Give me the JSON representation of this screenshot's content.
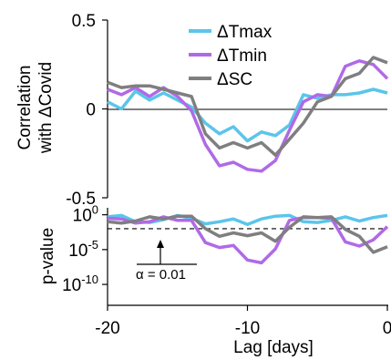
{
  "chart_data": [
    {
      "type": "line",
      "ylabel_line1": "Correlation",
      "ylabel_line2": "with ΔCovid",
      "xlim": [
        -20,
        0
      ],
      "ylim": [
        -0.5,
        0.5
      ],
      "y_ticks": [
        0.5,
        0,
        -0.5
      ],
      "y_tick_labels": [
        "0.5",
        "0",
        "-0.5"
      ],
      "zero_line": true,
      "grid": false,
      "legend_position": "top-right",
      "x": [
        -20,
        -19,
        -18,
        -17,
        -16,
        -15,
        -14,
        -13,
        -12,
        -11,
        -10,
        -9,
        -8,
        -7,
        -6,
        -5,
        -4,
        -3,
        -2,
        -1,
        0
      ],
      "series": [
        {
          "name": "ΔTmax",
          "color": "#5bc5ea",
          "values": [
            0.04,
            0.0,
            0.1,
            0.05,
            0.09,
            0.05,
            0.01,
            -0.08,
            -0.14,
            -0.1,
            -0.18,
            -0.13,
            -0.15,
            -0.09,
            0.08,
            0.06,
            0.08,
            0.08,
            0.09,
            0.11,
            0.09
          ]
        },
        {
          "name": "ΔTmin",
          "color": "#b06ae6",
          "values": [
            0.11,
            0.08,
            0.12,
            0.07,
            0.12,
            0.07,
            -0.01,
            -0.2,
            -0.32,
            -0.3,
            -0.34,
            -0.35,
            -0.29,
            -0.12,
            0.04,
            0.08,
            0.07,
            0.24,
            0.27,
            0.25,
            0.17
          ]
        },
        {
          "name": "ΔSC",
          "color": "#7f7f7f",
          "values": [
            0.15,
            0.12,
            0.13,
            0.13,
            0.11,
            0.09,
            0.07,
            -0.14,
            -0.22,
            -0.19,
            -0.22,
            -0.19,
            -0.26,
            -0.17,
            -0.08,
            0.04,
            0.07,
            0.17,
            0.2,
            0.29,
            0.26
          ]
        }
      ]
    },
    {
      "type": "line",
      "ylabel": "p-value",
      "xlabel": "Lag [days]",
      "xlim": [
        -20,
        0
      ],
      "x_ticks": [
        -20,
        -10,
        0
      ],
      "x_tick_labels": [
        "-20",
        "-10",
        "0"
      ],
      "yscale": "log",
      "ylim_log10": [
        -13,
        1
      ],
      "y_ticks_log10": [
        0,
        -5,
        -10
      ],
      "y_tick_labels": [
        {
          "base": "10",
          "exp": "0"
        },
        {
          "base": "10",
          "exp": "-5"
        },
        {
          "base": "10",
          "exp": "-10"
        }
      ],
      "threshold_log10": -2,
      "threshold_label": "α = 0.01",
      "x": [
        -20,
        -19,
        -18,
        -17,
        -16,
        -15,
        -14,
        -13,
        -12,
        -11,
        -10,
        -9,
        -8,
        -7,
        -6,
        -5,
        -4,
        -3,
        -2,
        -1,
        0
      ],
      "series": [
        {
          "color": "#5bc5ea",
          "log10_values": [
            -0.3,
            -0.1,
            -1.0,
            -1.1,
            -0.7,
            -0.1,
            -0.5,
            -1.3,
            -1.0,
            -0.6,
            -1.4,
            -0.6,
            -0.2,
            -0.1,
            -1.0,
            -1.1,
            -0.8,
            -0.3,
            -0.9,
            -0.4,
            -0.1
          ]
        },
        {
          "color": "#b06ae6",
          "log10_values": [
            -0.5,
            -0.6,
            -1.2,
            -1.0,
            -0.3,
            -0.8,
            -0.8,
            -4.0,
            -4.7,
            -4.4,
            -6.5,
            -6.9,
            -4.9,
            -0.8,
            -0.4,
            -0.4,
            -0.5,
            -3.9,
            -4.5,
            -3.6,
            -1.7
          ]
        },
        {
          "color": "#7f7f7f",
          "log10_values": [
            -1.0,
            -1.2,
            -0.9,
            -0.3,
            -0.6,
            -0.2,
            -0.2,
            -2.0,
            -3.1,
            -2.6,
            -3.0,
            -2.6,
            -3.8,
            -1.8,
            -0.3,
            -0.4,
            -0.3,
            -2.1,
            -3.1,
            -5.4,
            -4.6
          ]
        }
      ]
    }
  ]
}
